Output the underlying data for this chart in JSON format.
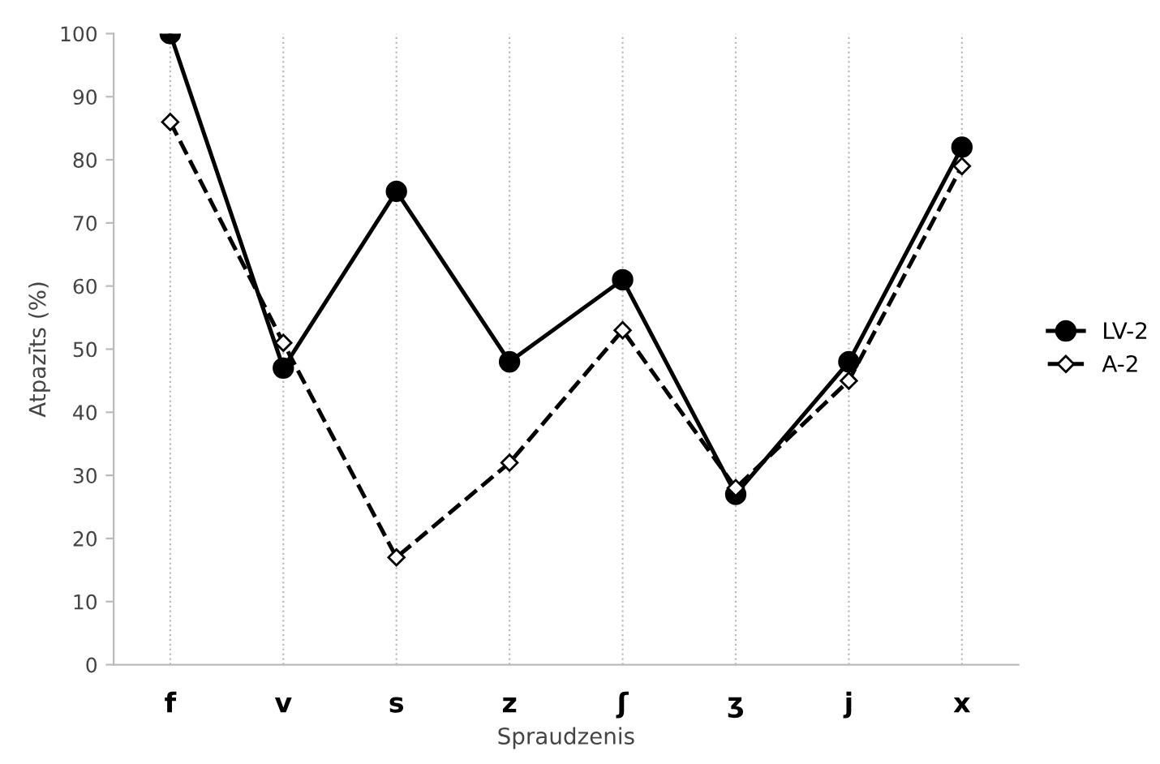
{
  "chart_data": {
    "type": "line",
    "xlabel": "Spraudzenis",
    "ylabel": "Atpazīts (%)",
    "categories": [
      "f",
      "v",
      "s",
      "z",
      "ʃ",
      "ʒ",
      "j",
      "x"
    ],
    "series": [
      {
        "name": "LV-2",
        "color": "#000000",
        "marker": "circle",
        "line_style": "solid",
        "values": [
          100,
          47,
          75,
          48,
          61,
          27,
          48,
          82
        ]
      },
      {
        "name": "A-2",
        "color": "#000000",
        "marker": "diamond",
        "line_style": "dashed",
        "values": [
          86,
          51,
          17,
          32,
          53,
          28,
          45,
          79
        ]
      }
    ],
    "ylim": [
      0,
      100
    ],
    "yticks": [
      0,
      10,
      20,
      30,
      40,
      50,
      60,
      70,
      80,
      90,
      100
    ],
    "grid": "x",
    "legend": "right"
  }
}
